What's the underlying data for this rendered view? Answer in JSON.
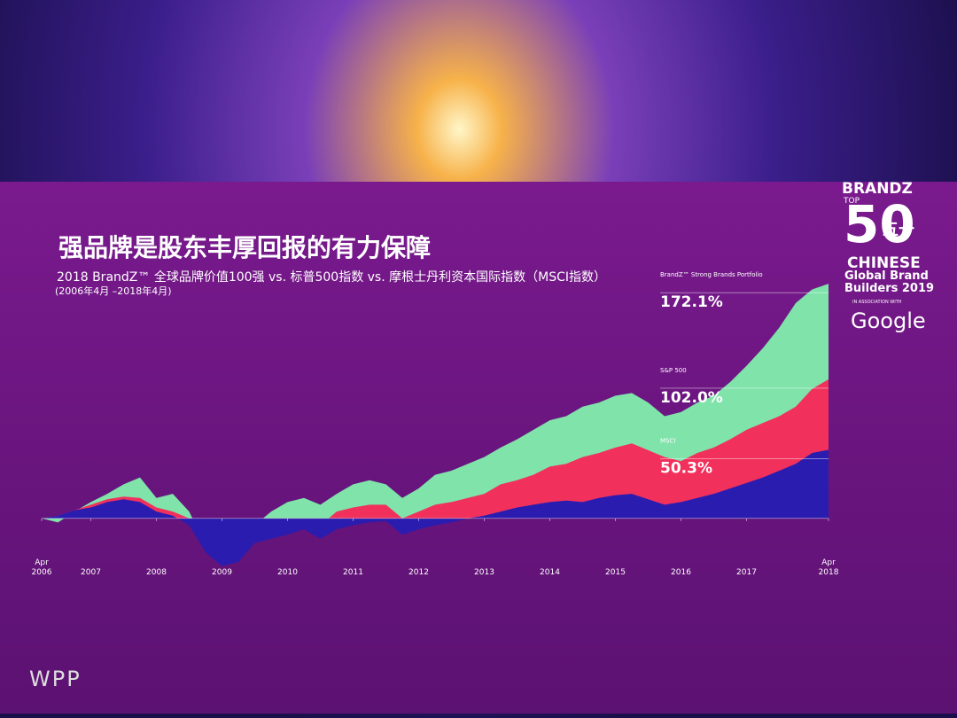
{
  "slide": {
    "title": "强品牌是股东丰厚回报的有力保障",
    "subtitle": "2018 BrandZ™ 全球品牌价值100强 vs. 标普500指数 vs. 摩根士丹利资本国际指数（MSCI指数）",
    "period": "(2006年4月 –2018年4月)",
    "logo": {
      "brand": "BRANDZ",
      "top": "TOP",
      "number": "50",
      "chinese_number": "五十",
      "line1": "CHINESE",
      "line2": "Global Brand",
      "line3": "Builders 2019",
      "association": "IN ASSOCIATION WITH",
      "partner": "Google"
    },
    "footer": "WPP"
  },
  "chart_data": {
    "type": "area",
    "x": [
      2006.25,
      2006.5,
      2006.75,
      2007,
      2007.25,
      2007.5,
      2007.75,
      2008,
      2008.25,
      2008.5,
      2008.75,
      2009,
      2009.25,
      2009.5,
      2009.75,
      2010,
      2010.25,
      2010.5,
      2010.75,
      2011,
      2011.25,
      2011.5,
      2011.75,
      2012,
      2012.25,
      2012.5,
      2012.75,
      2013,
      2013.25,
      2013.5,
      2013.75,
      2014,
      2014.25,
      2014.5,
      2014.75,
      2015,
      2015.25,
      2015.5,
      2015.75,
      2016,
      2016.25,
      2016.5,
      2016.75,
      2017,
      2017.25,
      2017.5,
      2017.75,
      2018,
      2018.25
    ],
    "xlim": [
      2006.25,
      2018.25
    ],
    "xticks": [
      {
        "value": 2006.25,
        "label": "Apr 2006"
      },
      2007,
      2008,
      2009,
      2010,
      2011,
      2012,
      2013,
      2014,
      2015,
      2016,
      2017,
      {
        "value": 2018.25,
        "label": "Apr 2018"
      }
    ],
    "ylim": [
      -45,
      180
    ],
    "series": [
      {
        "name": "BrandZ™ Strong Brands Portfolio",
        "color": "#7fe3aa",
        "end_label": "172.1%",
        "values": [
          0,
          -3,
          5,
          12,
          18,
          25,
          30,
          15,
          18,
          5,
          -20,
          -30,
          -25,
          -5,
          5,
          12,
          15,
          10,
          18,
          25,
          28,
          25,
          15,
          22,
          32,
          35,
          40,
          45,
          52,
          58,
          65,
          72,
          75,
          82,
          85,
          90,
          92,
          85,
          75,
          78,
          85,
          90,
          100,
          112,
          125,
          140,
          158,
          168,
          172.1
        ]
      },
      {
        "name": "S&P 500",
        "color": "#f2305c",
        "end_label": "102.0%",
        "values": [
          0,
          2,
          6,
          10,
          14,
          16,
          15,
          8,
          5,
          0,
          -20,
          -30,
          -28,
          -15,
          -10,
          -5,
          0,
          -5,
          5,
          8,
          10,
          10,
          0,
          5,
          10,
          12,
          15,
          18,
          25,
          28,
          32,
          38,
          40,
          45,
          48,
          52,
          55,
          50,
          45,
          42,
          48,
          52,
          58,
          65,
          70,
          75,
          82,
          95,
          102.0
        ]
      },
      {
        "name": "MSCI",
        "color": "#2b1cb0",
        "end_label": "50.3%",
        "values": [
          0,
          2,
          6,
          8,
          12,
          14,
          12,
          5,
          2,
          -5,
          -25,
          -35,
          -32,
          -18,
          -15,
          -12,
          -8,
          -15,
          -8,
          -5,
          -3,
          -2,
          -12,
          -8,
          -5,
          -3,
          0,
          2,
          5,
          8,
          10,
          12,
          13,
          12,
          15,
          17,
          18,
          14,
          10,
          12,
          15,
          18,
          22,
          26,
          30,
          35,
          40,
          48,
          50.3
        ]
      }
    ]
  }
}
